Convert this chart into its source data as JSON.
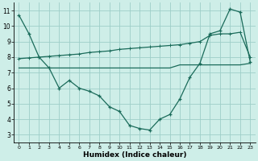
{
  "xlabel": "Humidex (Indice chaleur)",
  "bg_color": "#ceeee8",
  "grid_color": "#9ecec8",
  "line_color": "#1a6b5a",
  "xlim": [
    -0.5,
    23.5
  ],
  "ylim": [
    2.5,
    11.5
  ],
  "xticks": [
    0,
    1,
    2,
    3,
    4,
    5,
    6,
    7,
    8,
    9,
    10,
    11,
    12,
    13,
    14,
    15,
    16,
    17,
    18,
    19,
    20,
    21,
    22,
    23
  ],
  "yticks": [
    3,
    4,
    5,
    6,
    7,
    8,
    9,
    10,
    11
  ],
  "curve1_x": [
    0,
    1,
    2,
    3,
    4,
    5,
    6,
    7,
    8,
    9,
    10,
    11,
    12,
    13,
    14,
    15,
    16,
    17,
    18,
    19,
    20,
    21,
    22,
    23
  ],
  "curve1_y": [
    10.7,
    9.5,
    8.0,
    7.3,
    6.0,
    6.5,
    6.0,
    5.8,
    5.5,
    4.8,
    4.5,
    3.6,
    3.4,
    3.3,
    4.0,
    4.3,
    5.3,
    6.7,
    7.6,
    9.5,
    9.7,
    11.1,
    10.9,
    7.7
  ],
  "curve2_x": [
    0,
    1,
    2,
    3,
    4,
    5,
    6,
    7,
    8,
    9,
    10,
    11,
    12,
    13,
    14,
    15,
    16,
    17,
    18,
    19,
    20,
    21,
    22,
    23
  ],
  "curve2_y": [
    7.9,
    7.95,
    8.0,
    8.05,
    8.1,
    8.15,
    8.2,
    8.3,
    8.35,
    8.4,
    8.5,
    8.55,
    8.6,
    8.65,
    8.7,
    8.75,
    8.8,
    8.9,
    9.0,
    9.4,
    9.5,
    9.5,
    9.6,
    8.0
  ],
  "curve3_x": [
    0,
    1,
    2,
    3,
    4,
    5,
    6,
    7,
    8,
    9,
    10,
    11,
    12,
    13,
    14,
    15,
    16,
    17,
    18,
    19,
    20,
    21,
    22,
    23
  ],
  "curve3_y": [
    7.3,
    7.3,
    7.3,
    7.3,
    7.3,
    7.3,
    7.3,
    7.3,
    7.3,
    7.3,
    7.3,
    7.3,
    7.3,
    7.3,
    7.3,
    7.3,
    7.5,
    7.5,
    7.5,
    7.5,
    7.5,
    7.5,
    7.5,
    7.6
  ]
}
